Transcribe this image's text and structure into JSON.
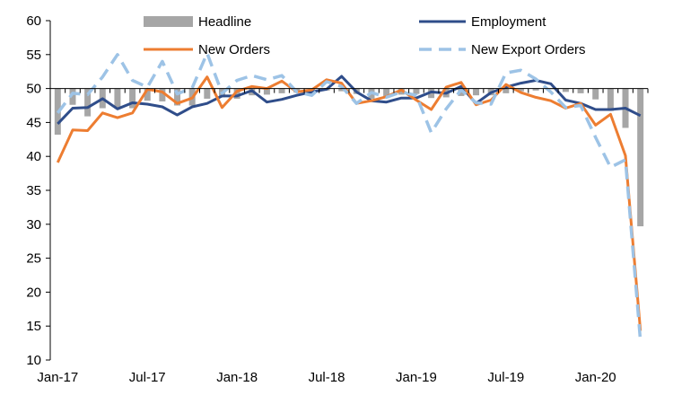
{
  "chart_data": {
    "type": "line",
    "title": "",
    "xlabel": "",
    "ylabel": "",
    "ylim": [
      10,
      60
    ],
    "yticks": [
      10,
      15,
      20,
      25,
      30,
      35,
      40,
      45,
      50,
      55,
      60
    ],
    "bar_baseline": 50,
    "grid": false,
    "legend_position": "top",
    "x": [
      "Jan-17",
      "Feb-17",
      "Mar-17",
      "Apr-17",
      "May-17",
      "Jun-17",
      "Jul-17",
      "Aug-17",
      "Sep-17",
      "Oct-17",
      "Nov-17",
      "Dec-17",
      "Jan-18",
      "Feb-18",
      "Mar-18",
      "Apr-18",
      "May-18",
      "Jun-18",
      "Jul-18",
      "Aug-18",
      "Sep-18",
      "Oct-18",
      "Nov-18",
      "Dec-18",
      "Jan-19",
      "Feb-19",
      "Mar-19",
      "Apr-19",
      "May-19",
      "Jun-19",
      "Jul-19",
      "Aug-19",
      "Sep-19",
      "Oct-19",
      "Nov-19",
      "Dec-19",
      "Jan-20",
      "Feb-20",
      "Mar-20",
      "Apr-20"
    ],
    "x_tick_labels": [
      {
        "index": 0,
        "label": "Jan-17"
      },
      {
        "index": 6,
        "label": "Jul-17"
      },
      {
        "index": 12,
        "label": "Jan-18"
      },
      {
        "index": 18,
        "label": "Jul-18"
      },
      {
        "index": 24,
        "label": "Jan-19"
      },
      {
        "index": 30,
        "label": "Jul-19"
      },
      {
        "index": 36,
        "label": "Jan-20"
      }
    ],
    "series": [
      {
        "name": "Headline",
        "kind": "bar",
        "color": "#a6a6a6",
        "values": [
          43.2,
          47.6,
          45.9,
          47.1,
          47.2,
          47.1,
          48.2,
          48.1,
          47.5,
          47.5,
          48.5,
          48.7,
          48.5,
          49.0,
          49.1,
          49.3,
          49.4,
          49.4,
          49.7,
          49.6,
          49.2,
          48.5,
          48.6,
          49.1,
          49.2,
          48.6,
          48.7,
          48.9,
          49.0,
          49.0,
          49.3,
          49.6,
          49.7,
          49.9,
          49.5,
          49.3,
          48.4,
          46.7,
          44.2,
          29.7
        ]
      },
      {
        "name": "Employment",
        "kind": "line",
        "color": "#2f4d8a",
        "dashed": false,
        "values": [
          44.8,
          47.1,
          47.2,
          48.5,
          47.0,
          47.9,
          47.7,
          47.3,
          46.1,
          47.3,
          47.8,
          48.9,
          48.9,
          49.7,
          48.0,
          48.4,
          49.0,
          49.5,
          49.9,
          51.8,
          49.5,
          48.2,
          48.0,
          48.6,
          48.6,
          49.5,
          49.3,
          50.3,
          47.8,
          49.4,
          50.2,
          50.8,
          51.2,
          50.7,
          48.3,
          47.8,
          46.9,
          46.9,
          47.1,
          46.0
        ]
      },
      {
        "name": "New Orders",
        "kind": "line",
        "color": "#ed7d31",
        "dashed": false,
        "values": [
          39.1,
          43.9,
          43.8,
          46.4,
          45.7,
          46.4,
          49.9,
          49.5,
          47.8,
          48.6,
          51.7,
          47.2,
          49.6,
          50.3,
          50.0,
          51.1,
          49.5,
          49.8,
          51.3,
          50.8,
          47.8,
          48.2,
          48.8,
          49.8,
          48.3,
          46.9,
          50.2,
          50.9,
          47.6,
          48.3,
          50.6,
          49.4,
          48.7,
          48.2,
          47.1,
          47.8,
          44.6,
          46.2,
          40.1,
          14.3
        ]
      },
      {
        "name": "New Export Orders",
        "kind": "line",
        "color": "#9dc3e6",
        "dashed": true,
        "values": [
          46.4,
          49.3,
          49.1,
          51.7,
          55.0,
          51.2,
          50.2,
          54.0,
          49.2,
          50.1,
          55.2,
          49.3,
          51.2,
          51.9,
          51.3,
          51.9,
          49.5,
          49.0,
          51.0,
          50.3,
          47.8,
          49.4,
          48.7,
          49.5,
          49.0,
          43.5,
          47.0,
          49.8,
          47.9,
          47.7,
          52.3,
          52.7,
          51.4,
          49.5,
          47.2,
          47.5,
          42.8,
          38.4,
          39.5,
          12.8
        ]
      }
    ]
  }
}
